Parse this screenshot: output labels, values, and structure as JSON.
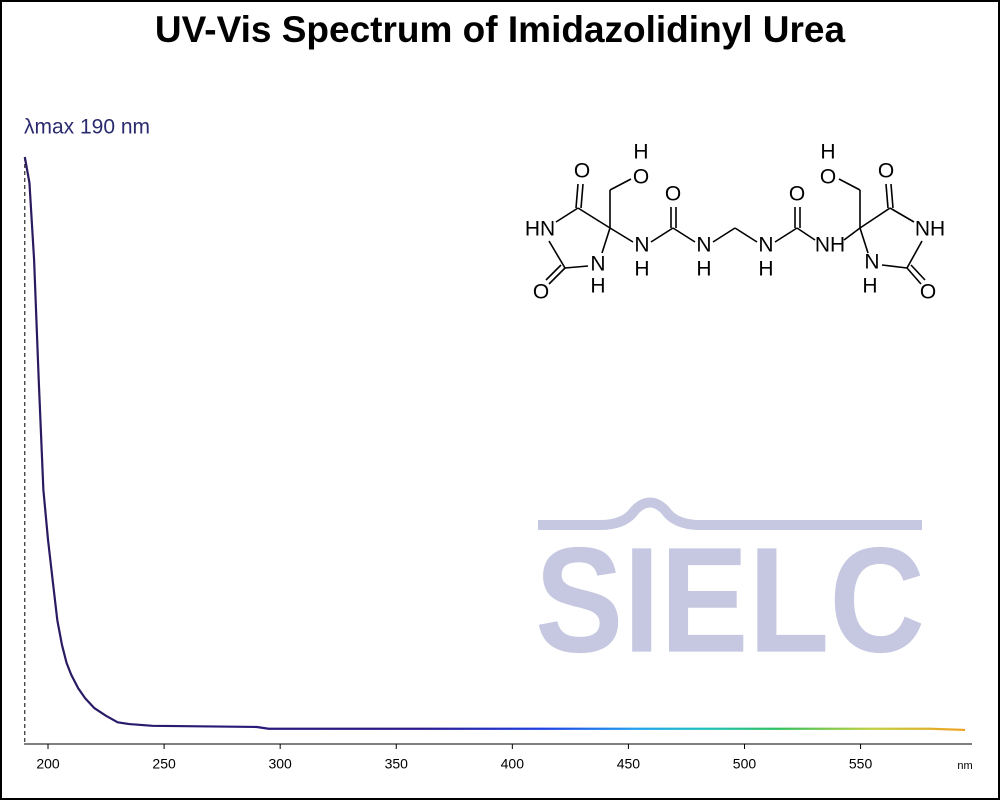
{
  "chart_data": {
    "type": "line",
    "title": "UV-Vis Spectrum of Imidazolidinyl Urea",
    "annotation": "λmax  190 nm",
    "lambda_max": 190,
    "x_label": "nm",
    "watermark": "SIELC",
    "structure_labels": [
      "H",
      "O",
      "O",
      "HN",
      "N",
      "H",
      "O",
      "N",
      "H",
      "O",
      "N",
      "H",
      "N",
      "H",
      "O",
      "NH",
      "H",
      "O",
      "O",
      "NH",
      "N",
      "H",
      "O"
    ],
    "x": [
      190,
      192,
      194,
      196,
      198,
      200,
      202,
      204,
      206,
      208,
      210,
      213,
      216,
      220,
      225,
      230,
      235,
      245,
      290,
      295,
      350,
      400,
      450,
      500,
      550,
      580,
      595
    ],
    "series": [
      {
        "name": "Imidazolidinyl Urea",
        "color": "#2a1a5e",
        "values": [
          1.0,
          0.956,
          0.825,
          0.62,
          0.433,
          0.348,
          0.279,
          0.211,
          0.169,
          0.138,
          0.118,
          0.095,
          0.078,
          0.061,
          0.048,
          0.037,
          0.034,
          0.031,
          0.029,
          0.026,
          0.026,
          0.026,
          0.026,
          0.026,
          0.026,
          0.026,
          0.024
        ]
      }
    ],
    "xlim": [
      190,
      598
    ],
    "ylim": [
      0,
      1
    ],
    "xticks": [
      200,
      250,
      300,
      350,
      400,
      450,
      500,
      550
    ],
    "grid": false
  }
}
